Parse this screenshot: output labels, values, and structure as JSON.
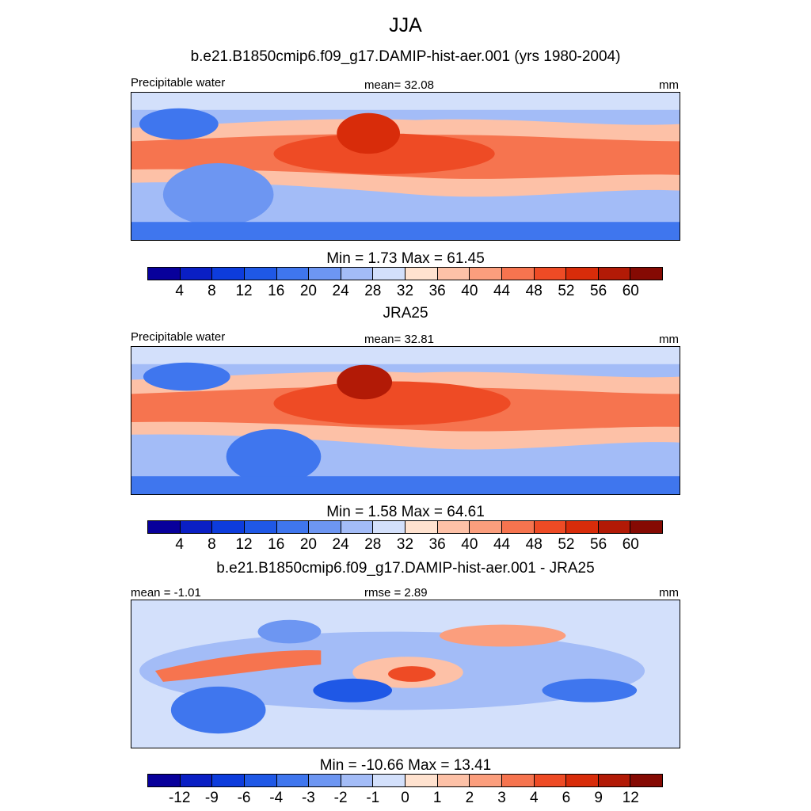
{
  "title": "JJA",
  "panels": [
    {
      "title": "b.e21.B1850cmip6.f09_g17.DAMIP-hist-aer.001 (yrs 1980-2004)",
      "left_label": "Precipitable water",
      "center_label": "mean=  32.08",
      "units": "mm",
      "minmax": "Min =   1.73 Max =  61.45",
      "kind": "abs"
    },
    {
      "title": "JRA25",
      "left_label": "Precipitable water",
      "center_label": "mean=  32.81",
      "units": "mm",
      "minmax": "Min =   1.58 Max =  64.61",
      "kind": "abs"
    },
    {
      "title": "b.e21.B1850cmip6.f09_g17.DAMIP-hist-aer.001 - JRA25",
      "left_label": "mean =  -1.01",
      "center_label": "rmse =   2.89",
      "units": "mm",
      "minmax": "Min = -10.66 Max =  13.41",
      "kind": "diff"
    }
  ],
  "colorbar_abs": {
    "colors": [
      "#08009b",
      "#0a1fc4",
      "#0d3cdc",
      "#1f58e6",
      "#3f76ee",
      "#6d96f2",
      "#a3bcf7",
      "#d3e0fb",
      "#ffe2cf",
      "#fdc1a7",
      "#fb9e7d",
      "#f6744f",
      "#ee4b25",
      "#d82c0a",
      "#b21a06",
      "#850a03"
    ],
    "ticks": [
      "4",
      "8",
      "12",
      "16",
      "20",
      "24",
      "28",
      "32",
      "36",
      "40",
      "44",
      "48",
      "52",
      "56",
      "60"
    ]
  },
  "colorbar_diff": {
    "colors": [
      "#08009b",
      "#0a1fc4",
      "#0d3cdc",
      "#1f58e6",
      "#3f76ee",
      "#6d96f2",
      "#a3bcf7",
      "#d3e0fb",
      "#ffe2cf",
      "#fdc1a7",
      "#fb9e7d",
      "#f6744f",
      "#ee4b25",
      "#d82c0a",
      "#b21a06",
      "#850a03"
    ],
    "ticks": [
      "-12",
      "-9",
      "-6",
      "-4",
      "-3",
      "-2",
      "-1",
      "0",
      "1",
      "2",
      "3",
      "4",
      "6",
      "9",
      "12"
    ]
  },
  "chart_data": [
    {
      "type": "heatmap",
      "title": "b.e21.B1850cmip6.f09_g17.DAMIP-hist-aer.001 (yrs 1980-2004)",
      "variable": "Precipitable water",
      "units": "mm",
      "season": "JJA",
      "mean": 32.08,
      "min": 1.73,
      "max": 61.45,
      "contour_levels": [
        4,
        8,
        12,
        16,
        20,
        24,
        28,
        32,
        36,
        40,
        44,
        48,
        52,
        56,
        60
      ]
    },
    {
      "type": "heatmap",
      "title": "JRA25",
      "variable": "Precipitable water",
      "units": "mm",
      "season": "JJA",
      "mean": 32.81,
      "min": 1.58,
      "max": 64.61,
      "contour_levels": [
        4,
        8,
        12,
        16,
        20,
        24,
        28,
        32,
        36,
        40,
        44,
        48,
        52,
        56,
        60
      ]
    },
    {
      "type": "heatmap",
      "title": "b.e21.B1850cmip6.f09_g17.DAMIP-hist-aer.001 - JRA25",
      "units": "mm",
      "season": "JJA",
      "mean": -1.01,
      "rmse": 2.89,
      "min": -10.66,
      "max": 13.41,
      "contour_levels": [
        -12,
        -9,
        -6,
        -4,
        -3,
        -2,
        -1,
        0,
        1,
        2,
        3,
        4,
        6,
        9,
        12
      ]
    }
  ]
}
